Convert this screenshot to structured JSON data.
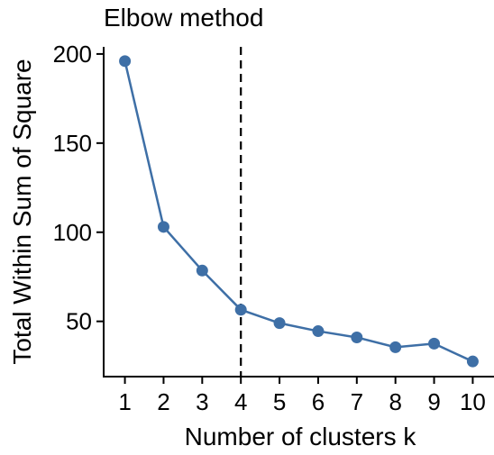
{
  "chart_data": {
    "type": "line",
    "title": "Elbow method",
    "xlabel": "Number of clusters k",
    "ylabel": "Total Within Sum of Square",
    "x": [
      1,
      2,
      3,
      4,
      5,
      6,
      7,
      8,
      9,
      10
    ],
    "series": [
      {
        "values": [
          196,
          103,
          78.5,
          56.5,
          49,
          44.5,
          41,
          35.5,
          37.5,
          27.5
        ],
        "color": "#3e6fa6"
      }
    ],
    "x_ticks": [
      "1",
      "2",
      "3",
      "4",
      "5",
      "6",
      "7",
      "8",
      "9",
      "10"
    ],
    "y_ticks": [
      "50",
      "100",
      "150",
      "200"
    ],
    "xlim": [
      0.45,
      10.55
    ],
    "ylim": [
      19,
      204
    ],
    "reference_line": {
      "axis": "x",
      "value": 4,
      "style": "dashed",
      "color": "#000000"
    },
    "grid": false,
    "legend": "none"
  }
}
